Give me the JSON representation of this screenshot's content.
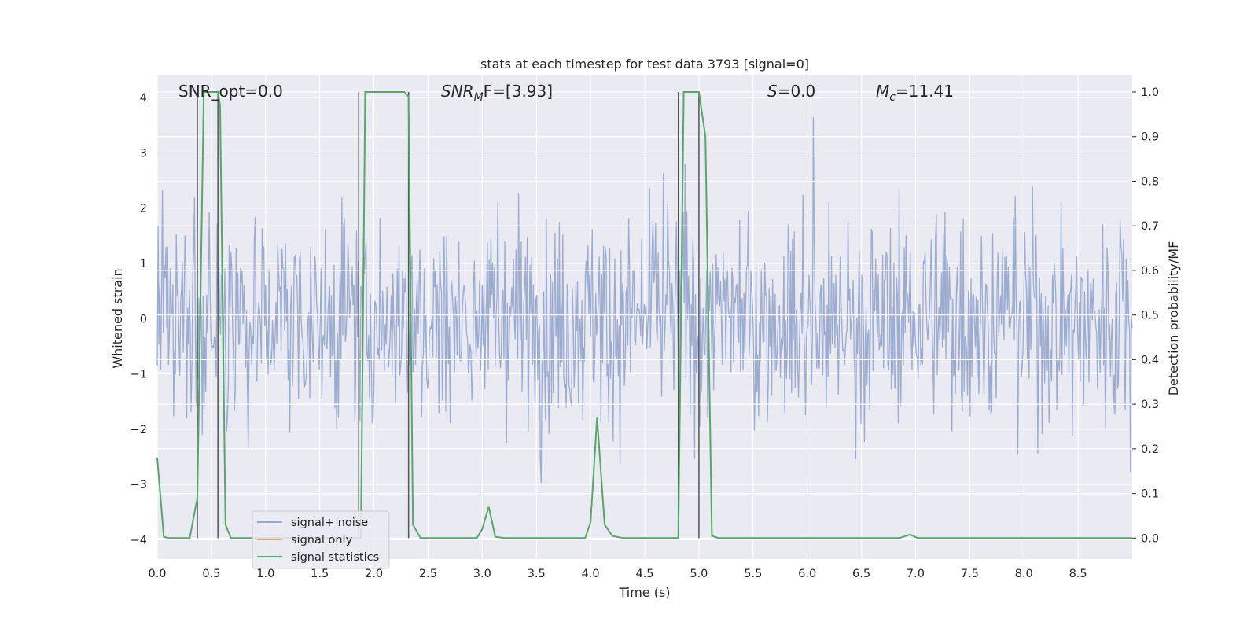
{
  "chart_data": {
    "type": "line",
    "title": "stats at each timestep for test data 3793 [signal=0]",
    "xlabel": "Time (s)",
    "ylabel": "Whitened strain",
    "y2label": "Detection probability/MF",
    "xlim": [
      0.0,
      9.0
    ],
    "ylim": [
      -4.35,
      4.4
    ],
    "y2lim": [
      -0.047,
      1.037
    ],
    "x_ticks": [
      "0.0",
      "0.5",
      "1.0",
      "1.5",
      "2.0",
      "2.5",
      "3.0",
      "3.5",
      "4.0",
      "4.5",
      "5.0",
      "5.5",
      "6.0",
      "6.5",
      "7.0",
      "7.5",
      "8.0",
      "8.5"
    ],
    "y_ticks": [
      "4",
      "3",
      "2",
      "1",
      "0",
      "−1",
      "−2",
      "−3",
      "−4"
    ],
    "y2_ticks": [
      "1.0",
      "0.9",
      "0.8",
      "0.7",
      "0.6",
      "0.5",
      "0.4",
      "0.3",
      "0.2",
      "0.1",
      "0.0"
    ],
    "grid": true,
    "legend_position": "lower-left",
    "annotations": {
      "snr_opt": "SNR_opt=0.0",
      "snr_mf_main": "SNR",
      "snr_mf_sub": "M",
      "snr_mf_rest": "F=[3.93]",
      "s_main": "S",
      "s_rest": "=0.0",
      "mc_main": "M",
      "mc_sub": "c",
      "mc_rest": "=11.41"
    },
    "vertical_markers": [
      0.37,
      0.56,
      1.86,
      2.32,
      4.81,
      5.0
    ],
    "noise_envelope": {
      "sample_step_s": 0.008,
      "typical_amplitude": 1.7,
      "peak_amplitude": 4.0
    },
    "series": [
      {
        "name": "signal+ noise",
        "color": "#98a9cf",
        "axis": "left"
      },
      {
        "name": "signal only",
        "color": "#e1a07c",
        "axis": "left",
        "x": [],
        "y": []
      },
      {
        "name": "signal statistics",
        "color": "#55a868",
        "axis": "right",
        "x": [
          0.0,
          0.06,
          0.1,
          0.15,
          0.3,
          0.37,
          0.43,
          0.5,
          0.56,
          0.58,
          0.63,
          0.68,
          1.5,
          1.88,
          1.92,
          1.96,
          2.0,
          2.1,
          2.2,
          2.28,
          2.32,
          2.36,
          2.43,
          2.5,
          2.75,
          2.95,
          3.0,
          3.06,
          3.12,
          3.2,
          3.5,
          3.95,
          4.0,
          4.06,
          4.13,
          4.2,
          4.3,
          4.5,
          4.81,
          4.86,
          4.92,
          5.0,
          5.06,
          5.12,
          5.18,
          5.5,
          6.0,
          6.5,
          6.85,
          6.95,
          7.02,
          7.5,
          8.0,
          8.5,
          9.0
        ],
        "y": [
          0.18,
          0.003,
          0.0,
          0.0,
          0.0,
          0.09,
          1.0,
          1.0,
          1.0,
          0.97,
          0.03,
          0.0,
          0.0,
          0.0,
          1.0,
          1.0,
          1.0,
          1.0,
          1.0,
          1.0,
          0.99,
          0.03,
          0.0,
          0.0,
          0.0,
          0.0,
          0.02,
          0.07,
          0.003,
          0.0,
          0.0,
          0.0,
          0.035,
          0.27,
          0.03,
          0.005,
          0.0,
          0.0,
          0.0,
          1.0,
          1.0,
          1.0,
          0.9,
          0.005,
          0.0,
          0.0,
          0.0,
          0.0,
          0.0,
          0.008,
          0.0,
          0.0,
          0.0,
          0.0,
          0.0
        ]
      }
    ]
  }
}
